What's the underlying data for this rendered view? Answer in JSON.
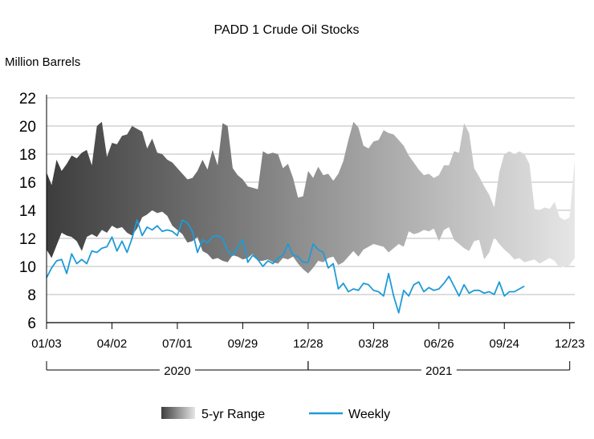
{
  "chart_data": {
    "type": "area",
    "title": "PADD 1 Crude Oil Stocks",
    "ylabel": "Million Barrels",
    "xlabel": "",
    "ylim": [
      6,
      22
    ],
    "yticks": [
      6,
      8,
      10,
      12,
      14,
      16,
      18,
      20,
      22
    ],
    "grid": true,
    "xlim_weeks": [
      0,
      105
    ],
    "xticks": [
      {
        "label": "01/03",
        "week": 0
      },
      {
        "label": "04/02",
        "week": 13
      },
      {
        "label": "07/01",
        "week": 26
      },
      {
        "label": "09/29",
        "week": 39
      },
      {
        "label": "12/28",
        "week": 52
      },
      {
        "label": "03/28",
        "week": 65
      },
      {
        "label": "06/26",
        "week": 78
      },
      {
        "label": "09/24",
        "week": 91
      },
      {
        "label": "12/23",
        "week": 104
      }
    ],
    "year_groups": [
      {
        "label": "2020",
        "start_week": 0,
        "end_week": 52
      },
      {
        "label": "2021",
        "start_week": 52,
        "end_week": 104
      }
    ],
    "legend_position": "bottom",
    "colors": {
      "range_dark": "#3d3d3d",
      "range_light": "#e6e6e6",
      "weekly": "#1e9bd7",
      "grid": "#bbbbbb"
    },
    "series": [
      {
        "name": "5-yr Range",
        "kind": "band",
        "x": [
          0,
          1,
          2,
          3,
          4,
          5,
          6,
          7,
          8,
          9,
          10,
          11,
          12,
          13,
          14,
          15,
          16,
          17,
          18,
          19,
          20,
          21,
          22,
          23,
          24,
          25,
          26,
          27,
          28,
          29,
          30,
          31,
          32,
          33,
          34,
          35,
          36,
          37,
          38,
          39,
          40,
          41,
          42,
          43,
          44,
          45,
          46,
          47,
          48,
          49,
          50,
          51,
          52,
          53,
          54,
          55,
          56,
          57,
          58,
          59,
          60,
          61,
          62,
          63,
          64,
          65,
          66,
          67,
          68,
          69,
          70,
          71,
          72,
          73,
          74,
          75,
          76,
          77,
          78,
          79,
          80,
          81,
          82,
          83,
          84,
          85,
          86,
          87,
          88,
          89,
          90,
          91,
          92,
          93,
          94,
          95,
          96,
          97,
          98,
          99,
          100,
          101,
          102,
          103,
          104,
          105
        ],
        "upper": [
          16.7,
          15.8,
          17.6,
          16.8,
          17.3,
          17.9,
          17.7,
          18.1,
          18.3,
          17.2,
          20.0,
          20.3,
          17.8,
          18.8,
          18.7,
          19.3,
          19.4,
          20.0,
          19.8,
          19.6,
          18.4,
          19.1,
          18.1,
          18.0,
          17.6,
          17.4,
          17.0,
          16.6,
          16.2,
          16.3,
          16.8,
          17.6,
          16.9,
          18.3,
          17.2,
          20.2,
          20.0,
          17.0,
          16.5,
          16.2,
          15.7,
          15.6,
          15.5,
          18.2,
          18.0,
          18.1,
          18.0,
          17.0,
          17.3,
          16.3,
          14.9,
          15.0,
          16.8,
          16.3,
          17.1,
          16.5,
          16.6,
          16.1,
          16.6,
          17.5,
          19.0,
          20.3,
          19.9,
          18.6,
          18.4,
          18.9,
          19.0,
          19.7,
          19.5,
          19.4,
          19.0,
          18.6,
          17.9,
          17.4,
          16.9,
          16.5,
          16.6,
          16.3,
          16.5,
          17.2,
          17.2,
          18.2,
          18.1,
          20.2,
          19.5,
          17.0,
          16.4,
          15.7,
          15.1,
          14.2,
          16.7,
          18.0,
          18.2,
          18.0,
          18.2,
          18.0,
          17.3,
          14.1,
          14.0,
          14.2,
          14.1,
          14.6,
          13.5,
          13.3,
          13.5,
          17.6
        ],
        "lower": [
          11.2,
          10.6,
          11.5,
          12.4,
          12.2,
          12.1,
          11.8,
          11.1,
          12.1,
          12.3,
          12.1,
          12.6,
          12.4,
          12.9,
          12.7,
          12.8,
          12.4,
          12.2,
          12.7,
          13.5,
          13.7,
          14.0,
          13.8,
          13.9,
          13.6,
          12.9,
          12.6,
          12.3,
          11.7,
          11.8,
          12.1,
          11.1,
          10.9,
          10.5,
          10.6,
          10.4,
          10.3,
          10.8,
          10.7,
          10.5,
          10.6,
          10.9,
          10.4,
          10.4,
          10.5,
          10.3,
          10.2,
          10.6,
          10.5,
          10.7,
          10.2,
          9.8,
          9.5,
          9.9,
          10.4,
          10.3,
          10.6,
          10.7,
          10.1,
          10.3,
          10.7,
          11.1,
          10.7,
          11.2,
          11.4,
          11.6,
          11.5,
          11.4,
          11.0,
          11.3,
          11.6,
          11.4,
          12.5,
          12.3,
          12.4,
          12.6,
          12.5,
          12.7,
          11.8,
          12.6,
          12.8,
          11.9,
          11.6,
          11.3,
          11.1,
          11.8,
          11.9,
          10.5,
          11.0,
          12.1,
          11.6,
          11.2,
          10.9,
          10.5,
          10.6,
          10.3,
          10.4,
          10.5,
          10.2,
          10.4,
          10.6,
          10.4,
          9.9,
          10.0,
          10.1,
          10.6
        ]
      },
      {
        "name": "Weekly",
        "kind": "line",
        "x": [
          0,
          1,
          2,
          3,
          4,
          5,
          6,
          7,
          8,
          9,
          10,
          11,
          12,
          13,
          14,
          15,
          16,
          17,
          18,
          19,
          20,
          21,
          22,
          23,
          24,
          25,
          26,
          27,
          28,
          29,
          30,
          31,
          32,
          33,
          34,
          35,
          36,
          37,
          38,
          39,
          40,
          41,
          42,
          43,
          44,
          45,
          46,
          47,
          48,
          49,
          50,
          51,
          52,
          53,
          54,
          55,
          56,
          57,
          58,
          59,
          60,
          61,
          62,
          63,
          64,
          65,
          66,
          67,
          68,
          69,
          70,
          71,
          72,
          73,
          74,
          75,
          76,
          77,
          78,
          79,
          80,
          81,
          82,
          83,
          84,
          85,
          86,
          87,
          88,
          89,
          90,
          91,
          92,
          93,
          94,
          95
        ],
        "values": [
          9.2,
          9.9,
          10.4,
          10.5,
          9.5,
          10.9,
          10.2,
          10.5,
          10.2,
          11.1,
          11.0,
          11.3,
          11.4,
          12.1,
          11.1,
          11.8,
          11.0,
          12.0,
          13.3,
          12.2,
          12.8,
          12.6,
          12.9,
          12.5,
          12.6,
          12.5,
          12.2,
          13.3,
          13.1,
          12.5,
          11.0,
          11.9,
          11.7,
          12.1,
          12.2,
          12.0,
          11.1,
          10.8,
          11.4,
          11.9,
          10.3,
          10.8,
          10.5,
          10.0,
          10.4,
          10.2,
          10.6,
          10.8,
          11.6,
          10.8,
          10.7,
          10.3,
          10.3,
          11.6,
          11.2,
          11.0,
          9.9,
          10.2,
          8.4,
          8.8,
          8.2,
          8.4,
          8.3,
          8.8,
          8.7,
          8.3,
          8.2,
          7.9,
          9.5,
          7.9,
          6.7,
          8.3,
          7.9,
          8.7,
          8.9,
          8.2,
          8.5,
          8.3,
          8.4,
          8.8,
          9.3,
          8.6,
          7.9,
          8.7,
          8.1,
          8.3,
          8.3,
          8.1,
          8.2,
          8.0,
          8.9,
          7.9,
          8.2,
          8.2,
          8.4,
          8.6
        ]
      }
    ]
  }
}
